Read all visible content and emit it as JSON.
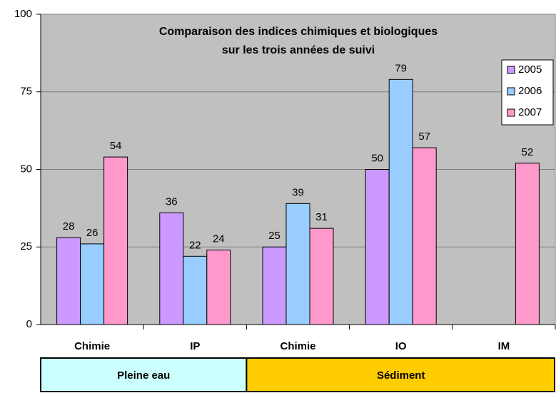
{
  "chart_data": {
    "type": "bar",
    "title": [
      "Comparaison des indices chimiques et biologiques",
      "sur les trois années de suivi"
    ],
    "categories": [
      "Chimie",
      "IP",
      "Chimie",
      "IO",
      "IM"
    ],
    "groups": [
      {
        "label": "Pleine eau",
        "span": 2,
        "color": "#ccffff"
      },
      {
        "label": "Sédiment",
        "span": 3,
        "color": "#ffcc00"
      }
    ],
    "series": [
      {
        "name": "2005",
        "color": "#cc99ff",
        "values": [
          28,
          36,
          25,
          50,
          null
        ]
      },
      {
        "name": "2006",
        "color": "#99ccff",
        "values": [
          26,
          22,
          39,
          79,
          null
        ]
      },
      {
        "name": "2007",
        "color": "#ff99cc",
        "values": [
          54,
          24,
          31,
          57,
          52
        ]
      }
    ],
    "ylim": [
      0,
      100
    ],
    "yticks": [
      0,
      25,
      50,
      75,
      100
    ],
    "grid": true,
    "legend": "top-right",
    "background": "#c0c0c0"
  }
}
